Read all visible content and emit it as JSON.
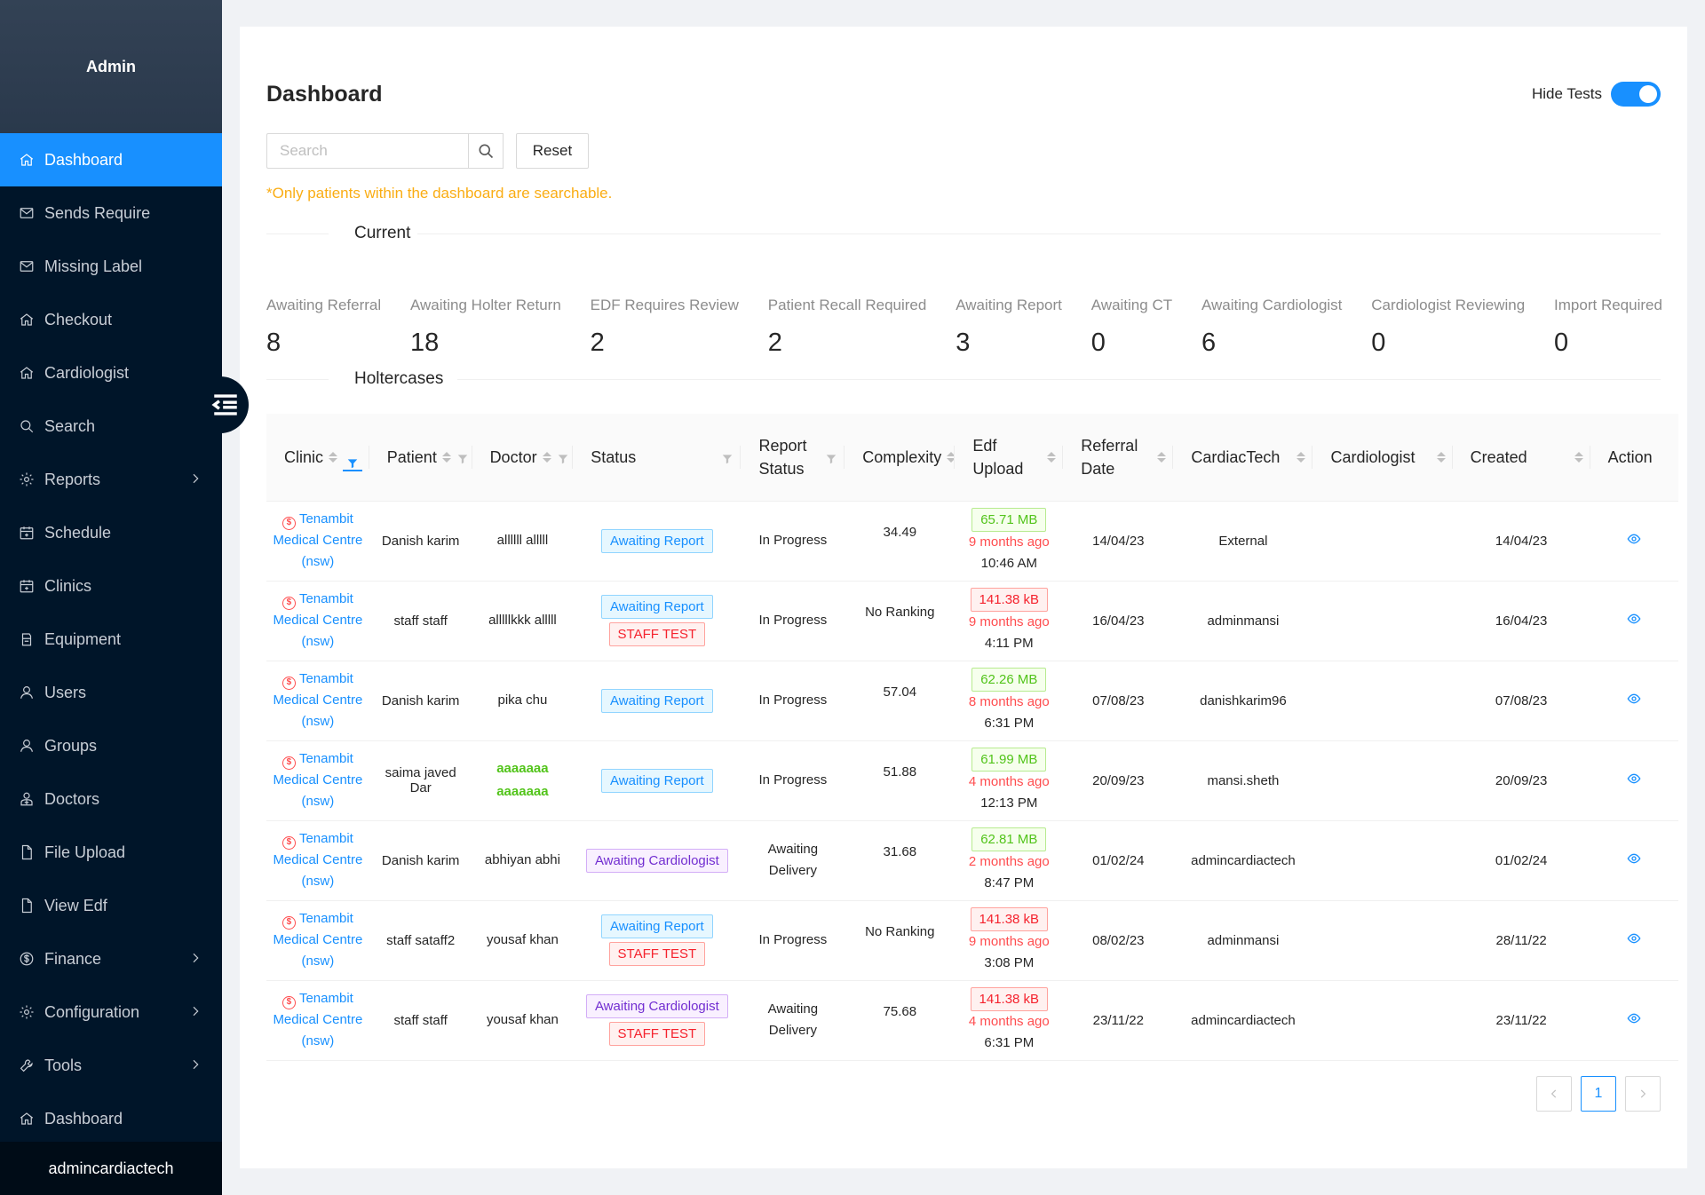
{
  "sidebar": {
    "title": "Admin",
    "items": [
      {
        "label": "Dashboard",
        "icon": "home-icon",
        "active": true
      },
      {
        "label": "Sends Require",
        "icon": "mail-icon"
      },
      {
        "label": "Missing Label",
        "icon": "mail-icon"
      },
      {
        "label": "Checkout",
        "icon": "home-icon"
      },
      {
        "label": "Cardiologist",
        "icon": "home-icon"
      },
      {
        "label": "Search",
        "icon": "search-icon"
      },
      {
        "label": "Reports",
        "icon": "gear-icon",
        "submenu": true
      },
      {
        "label": "Schedule",
        "icon": "calendar-icon"
      },
      {
        "label": "Clinics",
        "icon": "calendar-icon"
      },
      {
        "label": "Equipment",
        "icon": "printer-icon"
      },
      {
        "label": "Users",
        "icon": "user-icon"
      },
      {
        "label": "Groups",
        "icon": "user-icon"
      },
      {
        "label": "Doctors",
        "icon": "doctor-icon"
      },
      {
        "label": "File Upload",
        "icon": "file-icon"
      },
      {
        "label": "View Edf",
        "icon": "file-icon"
      },
      {
        "label": "Finance",
        "icon": "dollar-icon",
        "submenu": true
      },
      {
        "label": "Configuration",
        "icon": "gear-icon",
        "submenu": true
      },
      {
        "label": "Tools",
        "icon": "tool-icon",
        "submenu": true
      },
      {
        "label": "Dashboard",
        "icon": "home-icon"
      }
    ],
    "user": "admincardiactech"
  },
  "header": {
    "title": "Dashboard",
    "hide_tests_label": "Hide Tests",
    "hide_tests_on": true
  },
  "search": {
    "placeholder": "Search",
    "value": "",
    "reset_label": "Reset",
    "note": "*Only patients within the dashboard are searchable."
  },
  "current": {
    "heading": "Current",
    "stats": [
      {
        "label": "Awaiting Referral",
        "value": "8"
      },
      {
        "label": "Awaiting Holter Return",
        "value": "18"
      },
      {
        "label": "EDF Requires Review",
        "value": "2"
      },
      {
        "label": "Patient Recall Required",
        "value": "2"
      },
      {
        "label": "Awaiting Report",
        "value": "3"
      },
      {
        "label": "Awaiting CT",
        "value": "0"
      },
      {
        "label": "Awaiting Cardiologist",
        "value": "6"
      },
      {
        "label": "Cardiologist Reviewing",
        "value": "0"
      },
      {
        "label": "Import Required",
        "value": "0"
      }
    ]
  },
  "holtercases": {
    "heading": "Holtercases",
    "columns": {
      "clinic": "Clinic",
      "patient": "Patient",
      "doctor": "Doctor",
      "status": "Status",
      "report_status_1": "Report",
      "report_status_2": "Status",
      "complexity": "Complexity",
      "edf_1": "Edf",
      "edf_2": "Upload",
      "referral_1": "Referral",
      "referral_2": "Date",
      "cardiactech": "CardiacTech",
      "cardiologist": "Cardiologist",
      "created": "Created",
      "action": "Action"
    },
    "rows": [
      {
        "clinic": [
          "Tenambit",
          "Medical Centre",
          "(nsw)"
        ],
        "patient": "Danish karim",
        "doctor": [
          "allllll alllll"
        ],
        "doctor_green": false,
        "status": [
          {
            "text": "Awaiting Report",
            "color": "blue"
          }
        ],
        "report_status": [
          "In Progress"
        ],
        "complexity": "34.49",
        "edf_size": "65.71 MB",
        "edf_color": "green",
        "edf_ago": "9 months ago",
        "edf_time": "10:46 AM",
        "referral": "14/04/23",
        "cardiactech": "External",
        "cardiologist": "",
        "created": "14/04/23"
      },
      {
        "clinic": [
          "Tenambit",
          "Medical Centre",
          "(nsw)"
        ],
        "patient": "staff staff",
        "doctor": [
          "alllllkkk alllll"
        ],
        "doctor_green": false,
        "status": [
          {
            "text": "Awaiting Report",
            "color": "blue"
          },
          {
            "text": "STAFF TEST",
            "color": "red"
          }
        ],
        "report_status": [
          "In Progress"
        ],
        "complexity": "No Ranking",
        "edf_size": "141.38 kB",
        "edf_color": "red",
        "edf_ago": "9 months ago",
        "edf_time": "4:11 PM",
        "referral": "16/04/23",
        "cardiactech": "adminmansi",
        "cardiologist": "",
        "created": "16/04/23"
      },
      {
        "clinic": [
          "Tenambit",
          "Medical Centre",
          "(nsw)"
        ],
        "patient": "Danish karim",
        "doctor": [
          "pika chu"
        ],
        "doctor_green": false,
        "status": [
          {
            "text": "Awaiting Report",
            "color": "blue"
          }
        ],
        "report_status": [
          "In Progress"
        ],
        "complexity": "57.04",
        "edf_size": "62.26 MB",
        "edf_color": "green",
        "edf_ago": "8 months ago",
        "edf_time": "6:31 PM",
        "referral": "07/08/23",
        "cardiactech": "danishkarim96",
        "cardiologist": "",
        "created": "07/08/23"
      },
      {
        "clinic": [
          "Tenambit",
          "Medical Centre",
          "(nsw)"
        ],
        "patient": "saima javed Dar",
        "doctor": [
          "aaaaaaa",
          "aaaaaaa"
        ],
        "doctor_green": true,
        "status": [
          {
            "text": "Awaiting Report",
            "color": "blue"
          }
        ],
        "report_status": [
          "In Progress"
        ],
        "complexity": "51.88",
        "edf_size": "61.99 MB",
        "edf_color": "green",
        "edf_ago": "4 months ago",
        "edf_time": "12:13 PM",
        "referral": "20/09/23",
        "cardiactech": "mansi.sheth",
        "cardiologist": "",
        "created": "20/09/23"
      },
      {
        "clinic": [
          "Tenambit",
          "Medical Centre",
          "(nsw)"
        ],
        "patient": "Danish karim",
        "doctor": [
          "abhiyan abhi"
        ],
        "doctor_green": false,
        "status": [
          {
            "text": "Awaiting Cardiologist",
            "color": "purple"
          }
        ],
        "report_status": [
          "Awaiting",
          "Delivery"
        ],
        "complexity": "31.68",
        "edf_size": "62.81 MB",
        "edf_color": "green",
        "edf_ago": "2 months ago",
        "edf_time": "8:47 PM",
        "referral": "01/02/24",
        "cardiactech": "admincardiactech",
        "cardiologist": "",
        "created": "01/02/24"
      },
      {
        "clinic": [
          "Tenambit",
          "Medical Centre",
          "(nsw)"
        ],
        "patient": "staff sataff2",
        "doctor": [
          "yousaf khan"
        ],
        "doctor_green": false,
        "status": [
          {
            "text": "Awaiting Report",
            "color": "blue"
          },
          {
            "text": "STAFF TEST",
            "color": "red"
          }
        ],
        "report_status": [
          "In Progress"
        ],
        "complexity": "No Ranking",
        "edf_size": "141.38 kB",
        "edf_color": "red",
        "edf_ago": "9 months ago",
        "edf_time": "3:08 PM",
        "referral": "08/02/23",
        "cardiactech": "adminmansi",
        "cardiologist": "",
        "created": "28/11/22"
      },
      {
        "clinic": [
          "Tenambit",
          "Medical Centre",
          "(nsw)"
        ],
        "patient": "staff staff",
        "doctor": [
          "yousaf khan"
        ],
        "doctor_green": false,
        "status": [
          {
            "text": "Awaiting Cardiologist",
            "color": "purple"
          },
          {
            "text": "STAFF TEST",
            "color": "red"
          }
        ],
        "report_status": [
          "Awaiting",
          "Delivery"
        ],
        "complexity": "75.68",
        "edf_size": "141.38 kB",
        "edf_color": "red",
        "edf_ago": "4 months ago",
        "edf_time": "6:31 PM",
        "referral": "23/11/22",
        "cardiactech": "admincardiactech",
        "cardiologist": "",
        "created": "23/11/22"
      }
    ]
  },
  "pagination": {
    "current": "1"
  },
  "colors": {
    "primary": "#1890ff",
    "sidebar": "#001529",
    "warning": "#faad14",
    "danger": "#ff4d4f",
    "success": "#52c41a"
  }
}
